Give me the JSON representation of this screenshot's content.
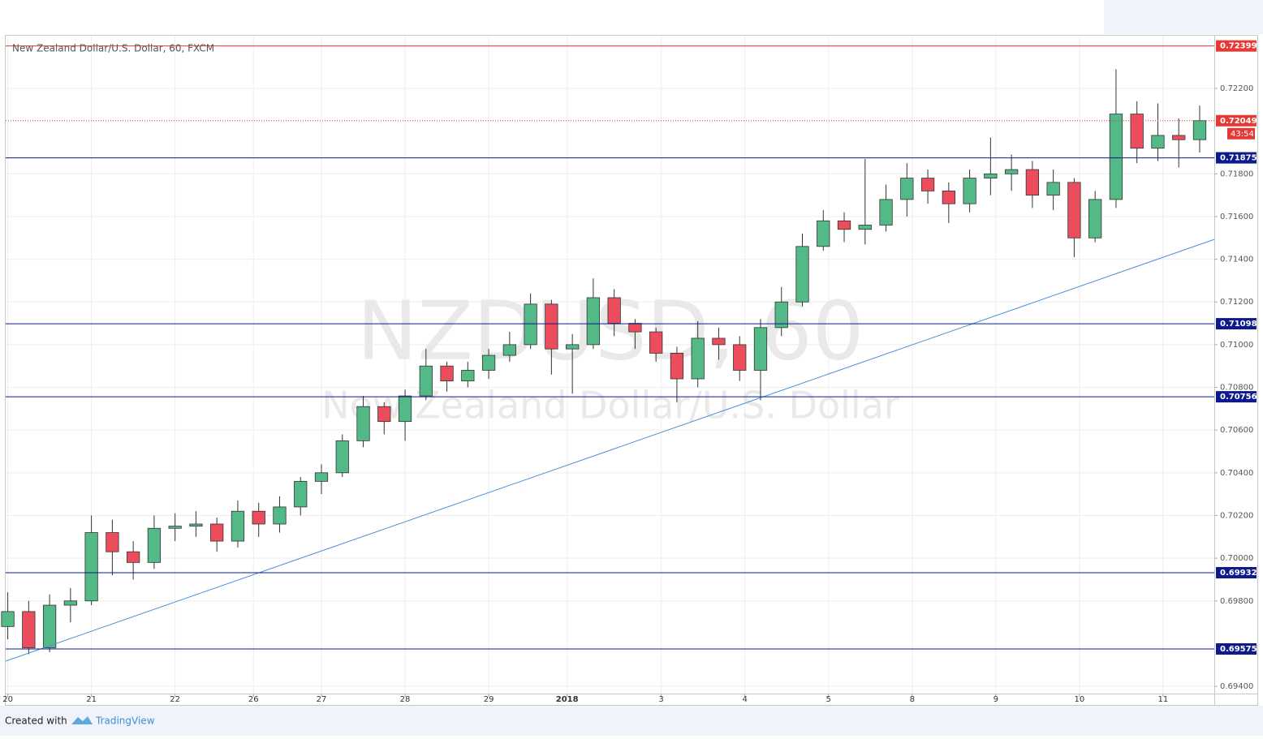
{
  "chart_data": {
    "type": "candlestick",
    "title": "New Zealand Dollar/U.S. Dollar, 60, FXCM",
    "watermark": "NZDUSD, 60",
    "watermark_subtitle": "New Zealand Dollar/U.S. Dollar",
    "footer": {
      "text": "Created with",
      "brand": "TradingView"
    },
    "xlim": [
      -0.1,
      57.7
    ],
    "xticks": [
      {
        "value": 0,
        "label": "20"
      },
      {
        "value": 4,
        "label": "21"
      },
      {
        "value": 8,
        "label": "22"
      },
      {
        "value": 11.75,
        "label": "26"
      },
      {
        "value": 15,
        "label": "27"
      },
      {
        "value": 19,
        "label": "28"
      },
      {
        "value": 23,
        "label": "29"
      },
      {
        "value": 26.75,
        "label": "2018"
      },
      {
        "value": 31.25,
        "label": "3"
      },
      {
        "value": 35.25,
        "label": "4"
      },
      {
        "value": 39.25,
        "label": "5"
      },
      {
        "value": 43.25,
        "label": "8"
      },
      {
        "value": 47.25,
        "label": "9"
      },
      {
        "value": 51.25,
        "label": "10"
      },
      {
        "value": 55.25,
        "label": "11"
      }
    ],
    "ylim": [
      0.69366,
      0.72447
    ],
    "yticks": [
      {
        "value": 0.694,
        "label": "0.69400"
      },
      {
        "value": 0.698,
        "label": "0.69800"
      },
      {
        "value": 0.7,
        "label": "0.70000"
      },
      {
        "value": 0.702,
        "label": "0.70200"
      },
      {
        "value": 0.704,
        "label": "0.70400"
      },
      {
        "value": 0.706,
        "label": "0.70600"
      },
      {
        "value": 0.708,
        "label": "0.70800"
      },
      {
        "value": 0.71,
        "label": "0.71000"
      },
      {
        "value": 0.712,
        "label": "0.71200"
      },
      {
        "value": 0.714,
        "label": "0.71400"
      },
      {
        "value": 0.716,
        "label": "0.71600"
      },
      {
        "value": 0.718,
        "label": "0.71800"
      },
      {
        "value": 0.722,
        "label": "0.72200"
      }
    ],
    "grid": true,
    "up_color": "#53b987",
    "down_color": "#eb4d5c",
    "open": [
      0.6968,
      0.6975,
      0.6958,
      0.6978,
      0.698,
      0.7012,
      0.7003,
      0.6998,
      0.7014,
      0.7015,
      0.7016,
      0.7008,
      0.7022,
      0.7016,
      0.7024,
      0.7036,
      0.704,
      0.7055,
      0.7071,
      0.7064,
      0.7076,
      0.709,
      0.7083,
      0.7088,
      0.7095,
      0.71,
      0.7119,
      0.7098,
      0.71,
      0.7122,
      0.711,
      0.7106,
      0.7096,
      0.7084,
      0.7103,
      0.71,
      0.7088,
      0.7108,
      0.712,
      0.7146,
      0.7158,
      0.7154,
      0.7156,
      0.7168,
      0.7178,
      0.7172,
      0.7166,
      0.7178,
      0.718,
      0.7182,
      0.717,
      0.7176,
      0.715,
      0.7168,
      0.7208,
      0.7192,
      0.7198,
      0.7196
    ],
    "high": [
      0.6984,
      0.698,
      0.6983,
      0.6986,
      0.702,
      0.7018,
      0.7008,
      0.702,
      0.7021,
      0.7022,
      0.7019,
      0.7027,
      0.7026,
      0.7029,
      0.7038,
      0.7044,
      0.7058,
      0.7076,
      0.7073,
      0.7079,
      0.7098,
      0.7092,
      0.7092,
      0.7098,
      0.7106,
      0.7124,
      0.7121,
      0.7105,
      0.7131,
      0.7126,
      0.7112,
      0.7108,
      0.7099,
      0.7111,
      0.7108,
      0.7104,
      0.7112,
      0.7127,
      0.7152,
      0.7163,
      0.7162,
      0.7187,
      0.7175,
      0.7185,
      0.7182,
      0.7176,
      0.7182,
      0.7197,
      0.7189,
      0.7186,
      0.7182,
      0.7178,
      0.7172,
      0.7229,
      0.7214,
      0.7213,
      0.7206,
      0.7212
    ],
    "low": [
      0.6962,
      0.6955,
      0.6956,
      0.697,
      0.6978,
      0.6992,
      0.699,
      0.6995,
      0.7008,
      0.701,
      0.7003,
      0.7005,
      0.701,
      0.7012,
      0.702,
      0.703,
      0.7038,
      0.7052,
      0.7058,
      0.7055,
      0.7074,
      0.7078,
      0.708,
      0.7084,
      0.7092,
      0.7098,
      0.7086,
      0.7077,
      0.7098,
      0.7104,
      0.7098,
      0.7092,
      0.7073,
      0.708,
      0.7093,
      0.7083,
      0.7074,
      0.7104,
      0.7118,
      0.7144,
      0.7148,
      0.7147,
      0.7153,
      0.716,
      0.7166,
      0.7157,
      0.7162,
      0.717,
      0.7172,
      0.7164,
      0.7163,
      0.7141,
      0.7148,
      0.7164,
      0.7185,
      0.7186,
      0.7183,
      0.719
    ],
    "close": [
      0.6975,
      0.6958,
      0.6978,
      0.698,
      0.7012,
      0.7003,
      0.6998,
      0.7014,
      0.7015,
      0.7016,
      0.7008,
      0.7022,
      0.7016,
      0.7024,
      0.7036,
      0.704,
      0.7055,
      0.7071,
      0.7064,
      0.7076,
      0.709,
      0.7083,
      0.7088,
      0.7095,
      0.71,
      0.7119,
      0.7098,
      0.71,
      0.7122,
      0.711,
      0.7106,
      0.7096,
      0.7084,
      0.7103,
      0.71,
      0.7088,
      0.7108,
      0.712,
      0.7146,
      0.7158,
      0.7154,
      0.7156,
      0.7168,
      0.7178,
      0.7172,
      0.7166,
      0.7178,
      0.718,
      0.7182,
      0.717,
      0.7176,
      0.715,
      0.7168,
      0.7208,
      0.7192,
      0.7198,
      0.7196,
      0.72049
    ],
    "levels": [
      {
        "price": 0.72399,
        "color": "#e53935"
      },
      {
        "price": 0.71875,
        "color": "#0d1a8c"
      },
      {
        "price": 0.71098,
        "color": "#0d1a8c"
      },
      {
        "price": 0.70756,
        "color": "#0d1a8c"
      },
      {
        "price": 0.69932,
        "color": "#0d1a8c"
      },
      {
        "price": 0.69575,
        "color": "#0d1a8c"
      }
    ],
    "current_price": {
      "price": 0.72049,
      "color": "#e53935",
      "countdown": "43:54"
    },
    "trendline": {
      "x": [
        -0.1,
        57.7
      ],
      "y": [
        0.69518,
        0.71493
      ],
      "color": "#4a90d9"
    }
  }
}
